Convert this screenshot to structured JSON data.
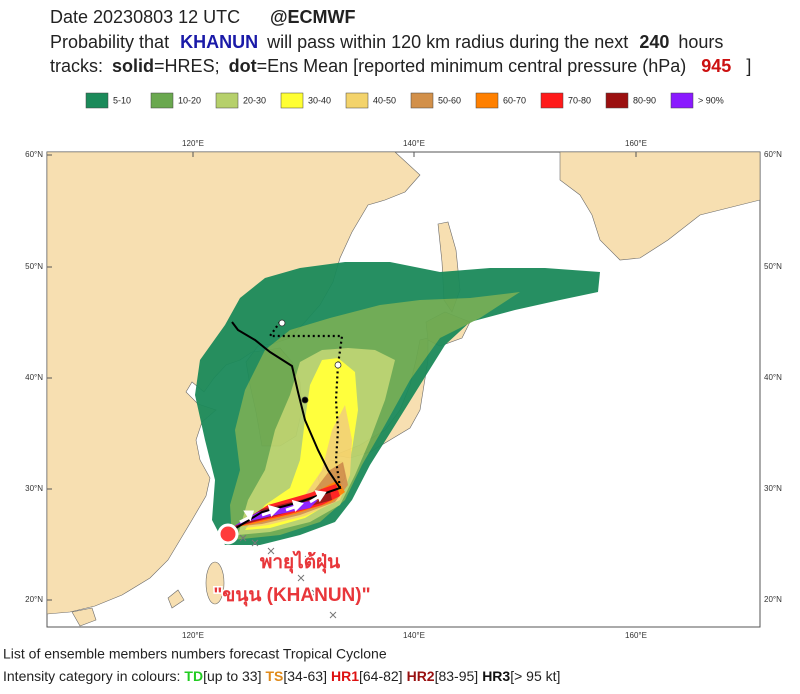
{
  "header": {
    "date": "Date 20230803 12 UTC",
    "source": "@ECMWF",
    "line2": [
      "Probability that",
      "KHANUN",
      "will pass within 120 km radius during the next",
      "240",
      "hours"
    ],
    "line3": [
      "tracks:",
      "solid",
      "=HRES;",
      "dot",
      "=Ens Mean [reported minimum central pressure (hPa)",
      "945",
      "]"
    ]
  },
  "legend": [
    {
      "label": "5-10",
      "color": "#1b8a5a"
    },
    {
      "label": "10-20",
      "color": "#6aa84f"
    },
    {
      "label": "20-30",
      "color": "#b6d06b"
    },
    {
      "label": "30-40",
      "color": "#ffff33"
    },
    {
      "label": "40-50",
      "color": "#f3d36b"
    },
    {
      "label": "50-60",
      "color": "#d2904a"
    },
    {
      "label": "60-70",
      "color": "#ff8000"
    },
    {
      "label": "70-80",
      "color": "#ff1a1a"
    },
    {
      "label": "80-90",
      "color": "#9b1010"
    },
    {
      "label": "> 90%",
      "color": "#8a1aff"
    }
  ],
  "map": {
    "lon_labels": [
      "120°E",
      "140°E",
      "160°E"
    ],
    "lat_labels": [
      "60°N",
      "50°N",
      "40°N",
      "30°N",
      "20°N"
    ],
    "annotation": [
      "พายุไต้ฝุ่น",
      "\"ขนุน (KHANUN)\""
    ]
  },
  "footer": {
    "line1": "List of ensemble members numbers forecast Tropical Cyclone",
    "line2": [
      {
        "text": "Intensity category in colours:",
        "color": "#222222"
      },
      {
        "text": "TD",
        "color": "#22cc22"
      },
      {
        "text": "[up to 33]",
        "color": "#222222"
      },
      {
        "text": "TS",
        "color": "#e08a1a"
      },
      {
        "text": "[34-63]",
        "color": "#222222"
      },
      {
        "text": "HR1",
        "color": "#dd1111"
      },
      {
        "text": "[64-82]",
        "color": "#222222"
      },
      {
        "text": "HR2",
        "color": "#991111"
      },
      {
        "text": "[83-95]",
        "color": "#222222"
      },
      {
        "text": "HR3",
        "color": "#111111"
      },
      {
        "text": "[> 95 kt]",
        "color": "#222222"
      }
    ]
  }
}
